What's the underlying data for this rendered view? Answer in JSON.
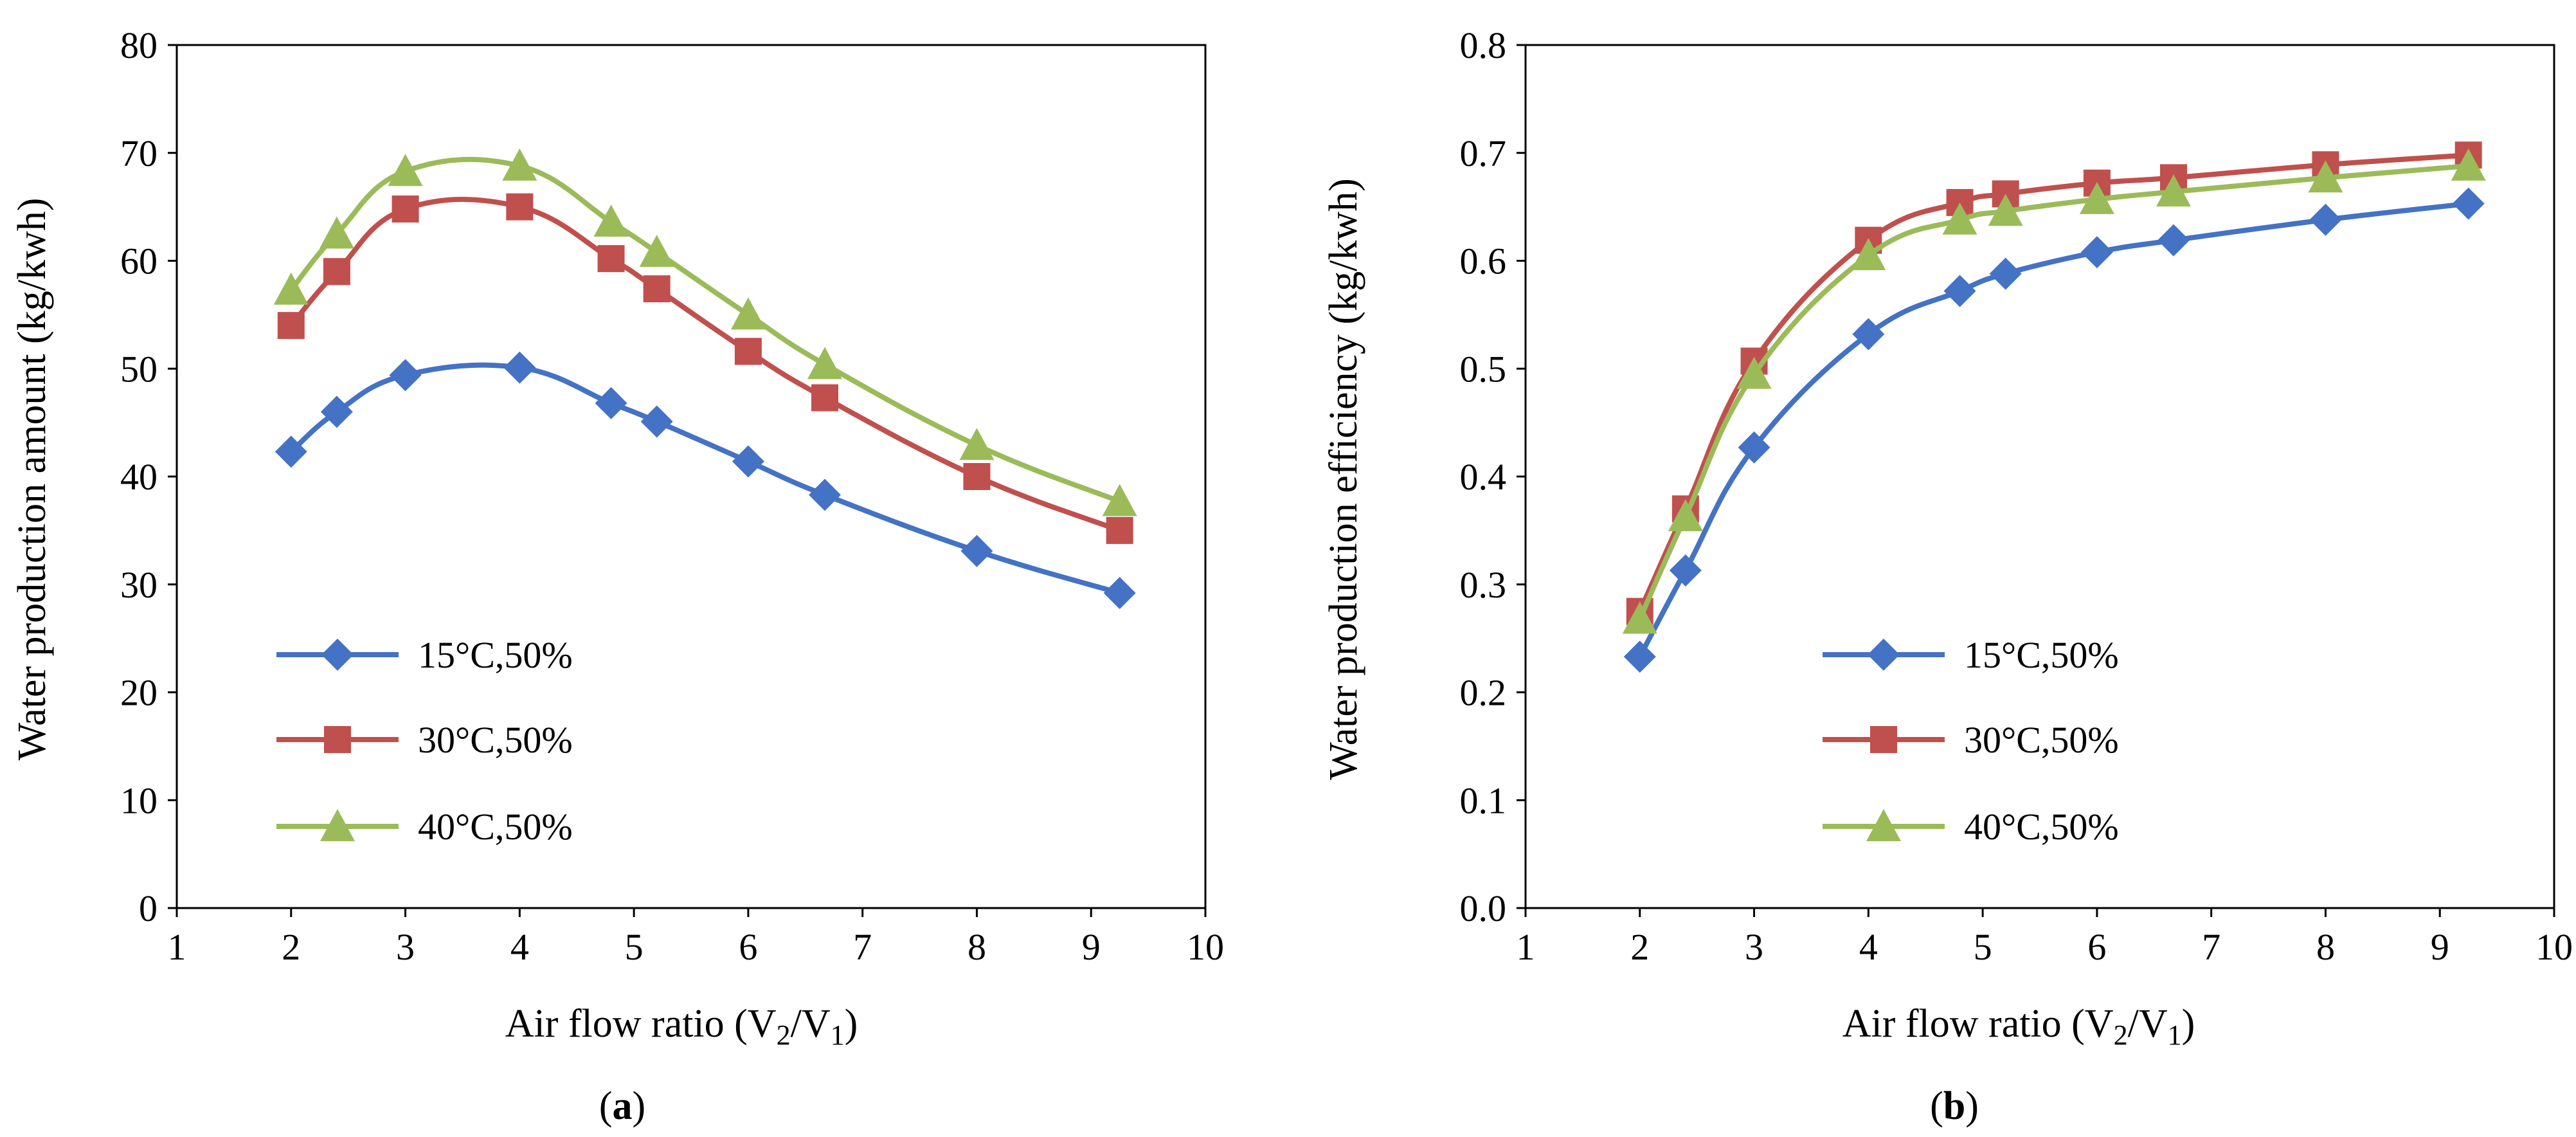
{
  "chart_data": [
    {
      "id": "a",
      "type": "line",
      "panel_label": "a",
      "xlabel": "Air flow ratio (V",
      "xlabel_sub1": "2",
      "xlabel_mid": "/V",
      "xlabel_sub2": "1",
      "xlabel_end": ")",
      "ylabel": "Water production amount  (kg/kwh)",
      "xlim": [
        1,
        10
      ],
      "ylim": [
        0,
        80
      ],
      "x_ticks": [
        "1",
        "2",
        "3",
        "4",
        "5",
        "6",
        "7",
        "8",
        "9",
        "10"
      ],
      "y_ticks": [
        "0",
        "10",
        "20",
        "30",
        "40",
        "50",
        "60",
        "70",
        "80"
      ],
      "y_tick_values": [
        0,
        10,
        20,
        30,
        40,
        50,
        60,
        70,
        80
      ],
      "legend_position": "lower-left",
      "series": [
        {
          "name": "15°C,50%",
          "color": "#4472C4",
          "marker": "diamond",
          "x": [
            2,
            2.4,
            3,
            4,
            4.8,
            5.2,
            6,
            6.67,
            8,
            9.25
          ],
          "values": [
            42.3,
            46,
            49.4,
            50.1,
            46.8,
            45.1,
            41.4,
            38.3,
            33.1,
            29.2
          ]
        },
        {
          "name": "30°C,50%",
          "color": "#C0504D",
          "marker": "square",
          "x": [
            2,
            2.4,
            3,
            4,
            4.8,
            5.2,
            6,
            6.67,
            8,
            9.25
          ],
          "values": [
            54,
            59,
            64.8,
            65,
            60.2,
            57.4,
            51.6,
            47.3,
            40,
            35
          ]
        },
        {
          "name": "40°C,50%",
          "color": "#9BBB59",
          "marker": "triangle",
          "x": [
            2,
            2.4,
            3,
            4,
            4.8,
            5.2,
            6,
            6.67,
            8,
            9.25
          ],
          "values": [
            57.3,
            62.5,
            68.3,
            68.8,
            63.6,
            60.8,
            55,
            50.4,
            42.9,
            37.7
          ]
        }
      ]
    },
    {
      "id": "b",
      "type": "line",
      "panel_label": "b",
      "xlabel": "Air flow ratio (V",
      "xlabel_sub1": "2",
      "xlabel_mid": "/V",
      "xlabel_sub2": "1",
      "xlabel_end": ")",
      "ylabel": "Water production efficiency  (kg/kwh)",
      "xlim": [
        1,
        10
      ],
      "ylim": [
        0,
        0.8
      ],
      "x_ticks": [
        "1",
        "2",
        "3",
        "4",
        "5",
        "6",
        "7",
        "8",
        "9",
        "10"
      ],
      "y_ticks": [
        "0.0",
        "0.1",
        "0.2",
        "0.3",
        "0.4",
        "0.5",
        "0.6",
        "0.7",
        "0.8"
      ],
      "y_tick_values": [
        0,
        0.1,
        0.2,
        0.3,
        0.4,
        0.5,
        0.6,
        0.7,
        0.8
      ],
      "legend_position": "lower-left",
      "series": [
        {
          "name": "15°C,50%",
          "color": "#4472C4",
          "marker": "diamond",
          "x": [
            2,
            2.4,
            3,
            4,
            4.8,
            5.2,
            6,
            6.67,
            8,
            9.25
          ],
          "values": [
            0.233,
            0.313,
            0.427,
            0.532,
            0.572,
            0.588,
            0.608,
            0.619,
            0.638,
            0.653
          ]
        },
        {
          "name": "30°C,50%",
          "color": "#C0504D",
          "marker": "square",
          "x": [
            2,
            2.4,
            3,
            4,
            4.8,
            5.2,
            6,
            6.67,
            8,
            9.25
          ],
          "values": [
            0.275,
            0.37,
            0.507,
            0.619,
            0.654,
            0.662,
            0.672,
            0.677,
            0.689,
            0.698
          ]
        },
        {
          "name": "40°C,50%",
          "color": "#9BBB59",
          "marker": "triangle",
          "x": [
            2,
            2.4,
            3,
            4,
            4.8,
            5.2,
            6,
            6.67,
            8,
            9.25
          ],
          "values": [
            0.268,
            0.363,
            0.495,
            0.605,
            0.638,
            0.646,
            0.657,
            0.664,
            0.677,
            0.688
          ]
        }
      ]
    }
  ]
}
